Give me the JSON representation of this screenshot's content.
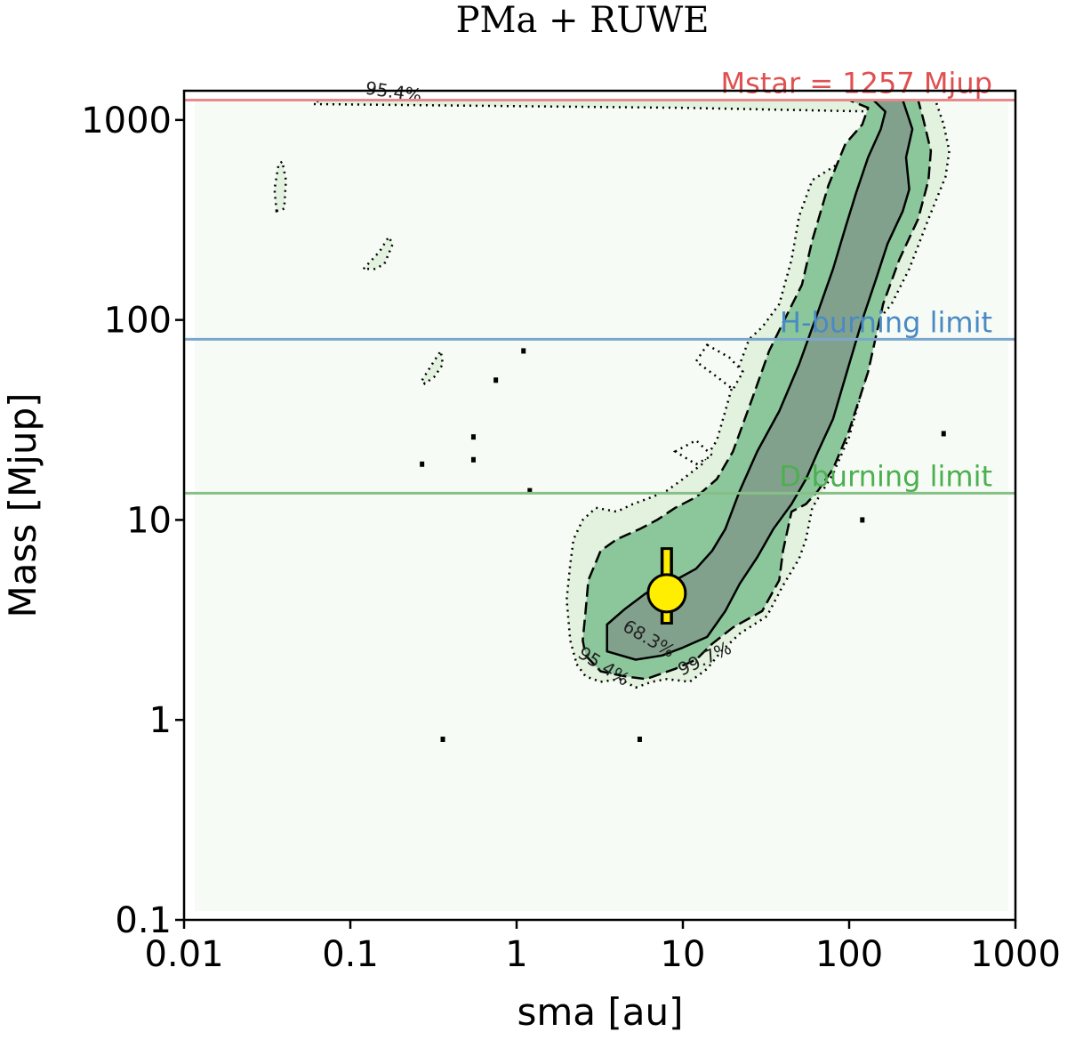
{
  "chart_data": {
    "type": "contour",
    "title": "PMa + RUWE",
    "xlabel": "sma [au]",
    "ylabel": "Mass [Mjup]",
    "x_scale": "log",
    "y_scale": "log",
    "xlim": [
      0.01,
      1000
    ],
    "ylim": [
      0.1,
      1400
    ],
    "x_ticks": [
      {
        "value": 0.01,
        "label": "0.01"
      },
      {
        "value": 0.1,
        "label": "0.1"
      },
      {
        "value": 1,
        "label": "1"
      },
      {
        "value": 10,
        "label": "10"
      },
      {
        "value": 100,
        "label": "100"
      },
      {
        "value": 1000,
        "label": "1000"
      }
    ],
    "y_ticks": [
      {
        "value": 0.1,
        "label": "0.1"
      },
      {
        "value": 1,
        "label": "1"
      },
      {
        "value": 10,
        "label": "10"
      },
      {
        "value": 100,
        "label": "100"
      },
      {
        "value": 1000,
        "label": "1000"
      }
    ],
    "reference_lines": [
      {
        "id": "mstar",
        "value": 1257,
        "label": "Mstar = 1257 Mjup",
        "color": "#e8888a",
        "text_color": "#e05050"
      },
      {
        "id": "h-burning",
        "value": 80,
        "label": "H-burning limit",
        "color": "#7aa6cf",
        "text_color": "#4a8ac4"
      },
      {
        "id": "d-burning",
        "value": 13.6,
        "label": "D-burning limit",
        "color": "#86c086",
        "text_color": "#4caf50"
      }
    ],
    "contour_levels": [
      {
        "level": "68.3%",
        "fill": "#82a18c",
        "stroke": "solid"
      },
      {
        "level": "95.4%",
        "fill": "#8cc79b",
        "stroke": "dashed"
      },
      {
        "level": "99.7%",
        "fill": "#e2f2de",
        "stroke": "dotted"
      }
    ],
    "contour_labels": [
      "95.4%",
      "68.3%",
      "95.4%",
      "99.7%"
    ],
    "background_fill": "#f7fbf5",
    "marker": {
      "sma": 8.0,
      "mass": 4.3,
      "mass_lower": 3.0,
      "mass_upper": 7.3,
      "color": "#ffee00"
    },
    "regions": {
      "r99": [
        [
          2.3,
          1.9
        ],
        [
          2.6,
          1.65
        ],
        [
          3.2,
          1.55
        ],
        [
          4.2,
          1.6
        ],
        [
          5.2,
          1.45
        ],
        [
          6.5,
          1.55
        ],
        [
          8,
          1.6
        ],
        [
          11,
          1.55
        ],
        [
          14,
          1.8
        ],
        [
          17,
          2.2
        ],
        [
          22,
          2.7
        ],
        [
          32,
          3.3
        ],
        [
          40,
          4.7
        ],
        [
          50,
          6.4
        ],
        [
          55,
          8
        ],
        [
          60,
          11.5
        ],
        [
          80,
          17
        ],
        [
          100,
          26
        ],
        [
          120,
          45
        ],
        [
          150,
          100
        ],
        [
          180,
          120
        ],
        [
          230,
          180
        ],
        [
          300,
          320
        ],
        [
          380,
          520
        ],
        [
          400,
          700
        ],
        [
          370,
          950
        ],
        [
          330,
          1257
        ],
        [
          6.3,
          1257
        ],
        [
          0.065,
          1257
        ],
        [
          0.06,
          1200
        ],
        [
          10,
          1150
        ],
        [
          150,
          1100
        ],
        [
          125,
          1000
        ],
        [
          100,
          750
        ],
        [
          85,
          600
        ],
        [
          60,
          500
        ],
        [
          50,
          330
        ],
        [
          45,
          200
        ],
        [
          38,
          120
        ],
        [
          30,
          92
        ],
        [
          25,
          80
        ],
        [
          22,
          60
        ],
        [
          20,
          48
        ],
        [
          18,
          35
        ],
        [
          16,
          25
        ],
        [
          13,
          19
        ],
        [
          10,
          16
        ],
        [
          8,
          14
        ],
        [
          6.5,
          13
        ],
        [
          5,
          12
        ],
        [
          4,
          11
        ],
        [
          3,
          11.5
        ],
        [
          2.5,
          10
        ],
        [
          2.2,
          8
        ],
        [
          2.1,
          6
        ],
        [
          2.0,
          4
        ],
        [
          2.1,
          2.5
        ]
      ],
      "r95": [
        [
          2.6,
          2.1
        ],
        [
          3.2,
          1.75
        ],
        [
          4.5,
          1.65
        ],
        [
          6,
          1.6
        ],
        [
          9,
          1.8
        ],
        [
          12,
          2.0
        ],
        [
          15,
          2.4
        ],
        [
          20,
          2.9
        ],
        [
          30,
          3.5
        ],
        [
          38,
          5
        ],
        [
          40,
          7
        ],
        [
          45,
          11
        ],
        [
          55,
          12
        ],
        [
          65,
          14
        ],
        [
          80,
          18
        ],
        [
          100,
          28
        ],
        [
          130,
          55
        ],
        [
          160,
          120
        ],
        [
          200,
          200
        ],
        [
          260,
          320
        ],
        [
          300,
          500
        ],
        [
          310,
          700
        ],
        [
          280,
          1000
        ],
        [
          260,
          1257
        ],
        [
          100,
          1257
        ],
        [
          130,
          1150
        ],
        [
          120,
          950
        ],
        [
          95,
          760
        ],
        [
          75,
          470
        ],
        [
          60,
          250
        ],
        [
          52,
          150
        ],
        [
          42,
          105
        ],
        [
          33,
          70
        ],
        [
          26,
          40
        ],
        [
          20,
          22
        ],
        [
          16,
          16
        ],
        [
          12,
          13
        ],
        [
          9,
          11.5
        ],
        [
          7,
          10
        ],
        [
          5.5,
          9
        ],
        [
          4,
          8
        ],
        [
          3.2,
          7
        ],
        [
          2.7,
          5
        ],
        [
          2.6,
          3.5
        ],
        [
          2.5,
          2.5
        ]
      ],
      "r68": [
        [
          3.5,
          2.2
        ],
        [
          5.2,
          2.0
        ],
        [
          7.5,
          2.1
        ],
        [
          10,
          2.3
        ],
        [
          14,
          2.6
        ],
        [
          18,
          3.5
        ],
        [
          22,
          4.8
        ],
        [
          28,
          6.5
        ],
        [
          35,
          9
        ],
        [
          45,
          12
        ],
        [
          55,
          16
        ],
        [
          65,
          22
        ],
        [
          80,
          32
        ],
        [
          100,
          60
        ],
        [
          120,
          100
        ],
        [
          145,
          160
        ],
        [
          170,
          240
        ],
        [
          210,
          350
        ],
        [
          230,
          450
        ],
        [
          220,
          650
        ],
        [
          240,
          900
        ],
        [
          210,
          1257
        ],
        [
          140,
          1257
        ],
        [
          165,
          1100
        ],
        [
          155,
          900
        ],
        [
          130,
          650
        ],
        [
          110,
          430
        ],
        [
          95,
          290
        ],
        [
          80,
          180
        ],
        [
          65,
          110
        ],
        [
          50,
          60
        ],
        [
          38,
          35
        ],
        [
          28,
          22
        ],
        [
          22,
          14
        ],
        [
          18,
          9
        ],
        [
          15,
          7
        ],
        [
          12,
          5.7
        ],
        [
          9,
          5
        ],
        [
          6,
          4.3
        ],
        [
          4.5,
          3.6
        ],
        [
          3.5,
          3.0
        ]
      ]
    },
    "islands_dotted": [
      [
        [
          0.036,
          350
        ],
        [
          0.04,
          360
        ],
        [
          0.041,
          500
        ],
        [
          0.039,
          620
        ],
        [
          0.037,
          600
        ],
        [
          0.035,
          450
        ]
      ],
      [
        [
          0.12,
          180
        ],
        [
          0.15,
          220
        ],
        [
          0.17,
          260
        ],
        [
          0.18,
          240
        ],
        [
          0.16,
          190
        ],
        [
          0.14,
          180
        ]
      ],
      [
        [
          0.27,
          50
        ],
        [
          0.31,
          60
        ],
        [
          0.35,
          70
        ],
        [
          0.36,
          60
        ],
        [
          0.32,
          52
        ],
        [
          0.28,
          48
        ]
      ]
    ],
    "small_specks": [
      [
        1.1,
        70
      ],
      [
        0.75,
        50
      ],
      [
        0.55,
        26
      ],
      [
        0.55,
        20
      ],
      [
        0.27,
        19
      ],
      [
        1.2,
        14
      ],
      [
        0.36,
        0.8
      ],
      [
        5.5,
        0.8
      ],
      [
        120,
        10
      ],
      [
        370,
        27
      ]
    ],
    "holes_dotted": [
      [
        [
          14,
          75
        ],
        [
          19,
          65
        ],
        [
          23,
          55
        ],
        [
          20,
          45
        ],
        [
          16,
          52
        ],
        [
          12,
          62
        ]
      ],
      [
        [
          9,
          22
        ],
        [
          12,
          25
        ],
        [
          15,
          21
        ],
        [
          12,
          19
        ]
      ]
    ]
  }
}
